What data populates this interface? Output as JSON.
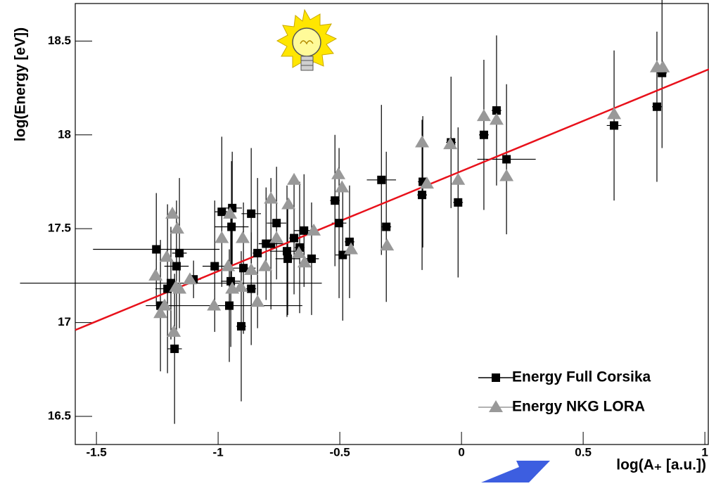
{
  "chart_data": {
    "type": "scatter",
    "x_label": "log(A₊ [a.u.])",
    "y_label": "log(Energy [eV])",
    "xlim": [
      -1.587,
      1.017
    ],
    "ylim": [
      16.35,
      18.7
    ],
    "xticks": [
      -1.5,
      -1,
      -0.5,
      0,
      0.5,
      1
    ],
    "yticks": [
      16.5,
      17,
      17.5,
      18,
      18.5
    ],
    "series": [
      {
        "name": "Energy Full Corsika",
        "color": "#000000",
        "marker": "square",
        "x": [
          -1.254,
          -1.237,
          -1.208,
          -1.194,
          -1.179,
          -1.171,
          -1.159,
          -1.101,
          -1.014,
          -0.985,
          -0.954,
          -0.948,
          -0.942,
          -0.945,
          -0.905,
          -0.896,
          -0.864,
          -0.864,
          -0.838,
          -0.803,
          -0.783,
          -0.76,
          -0.717,
          -0.714,
          -0.688,
          -0.665,
          -0.647,
          -0.616,
          -0.52,
          -0.503,
          -0.488,
          -0.46,
          -0.329,
          -0.309,
          -0.162,
          -0.159,
          -0.043,
          -0.014,
          0.092,
          0.144,
          0.185,
          0.627,
          0.803,
          0.824
        ],
        "values": [
          17.39,
          17.09,
          17.18,
          17.21,
          16.86,
          17.3,
          17.37,
          17.23,
          17.3,
          17.59,
          17.09,
          17.22,
          17.61,
          17.51,
          16.98,
          17.29,
          17.58,
          17.18,
          17.37,
          17.42,
          17.42,
          17.53,
          17.38,
          17.34,
          17.45,
          17.4,
          17.49,
          17.34,
          17.65,
          17.53,
          17.36,
          17.43,
          17.76,
          17.51,
          17.68,
          17.75,
          17.96,
          17.64,
          18.0,
          18.13,
          17.87,
          18.05,
          18.15,
          18.33
        ],
        "yerr": [
          0.3,
          0.35,
          0.45,
          0.3,
          0.4,
          0.35,
          0.4,
          0.1,
          0.35,
          0.4,
          0.3,
          0.35,
          0.3,
          0.35,
          0.4,
          0.35,
          0.35,
          0.3,
          0.4,
          0.3,
          0.35,
          0.3,
          0.35,
          0.3,
          0.3,
          0.35,
          0.3,
          0.3,
          0.35,
          0.4,
          0.35,
          0.3,
          0.4,
          0.4,
          0.4,
          0.35,
          0.35,
          0.4,
          0.4,
          0.4,
          0.4,
          0.4,
          0.4,
          0.4
        ],
        "xerr": [
          0.26,
          0.06,
          0.05,
          0.62,
          0.03,
          0.05,
          0.03,
          0.03,
          0.05,
          0.03,
          0.3,
          0.04,
          0.04,
          0.07,
          0.02,
          0.05,
          0.04,
          0.02,
          0.02,
          0.03,
          0.05,
          0.04,
          0.07,
          0.05,
          0.02,
          0.02,
          0.04,
          0.03,
          0.02,
          0.03,
          0.03,
          0.02,
          0.06,
          0.02,
          0.02,
          0.02,
          0.02,
          0.02,
          0.02,
          0.02,
          0.12,
          0.03,
          0.02,
          0.02
        ]
      },
      {
        "name": "Energy NKG LORA",
        "color": "#999999",
        "marker": "triangle",
        "x": [
          -1.257,
          -1.237,
          -1.22,
          -1.211,
          -1.188,
          -1.182,
          -1.173,
          -1.168,
          -1.159,
          -1.116,
          -1.017,
          -0.985,
          -0.959,
          -0.951,
          -0.942,
          -0.907,
          -0.899,
          -0.864,
          -0.838,
          -0.806,
          -0.783,
          -0.76,
          -0.711,
          -0.688,
          -0.668,
          -0.645,
          -0.607,
          -0.506,
          -0.491,
          -0.454,
          -0.306,
          -0.162,
          -0.142,
          -0.046,
          -0.014,
          0.092,
          0.144,
          0.185,
          0.627,
          0.803,
          0.827
        ],
        "values": [
          17.25,
          17.05,
          17.09,
          17.35,
          17.58,
          16.95,
          17.19,
          17.5,
          17.18,
          17.23,
          17.09,
          17.45,
          17.3,
          17.58,
          17.18,
          17.19,
          17.45,
          17.28,
          17.11,
          17.3,
          17.66,
          17.45,
          17.63,
          17.76,
          17.37,
          17.32,
          17.49,
          17.79,
          17.72,
          17.39,
          17.41,
          17.96,
          17.74,
          17.95,
          17.76,
          18.1,
          18.08,
          17.78,
          18.11,
          18.36,
          18.36
        ]
      }
    ],
    "fit": {
      "color": "#e8111b",
      "x": [
        -1.587,
        1.017
      ],
      "values": [
        16.96,
        18.35
      ]
    }
  }
}
